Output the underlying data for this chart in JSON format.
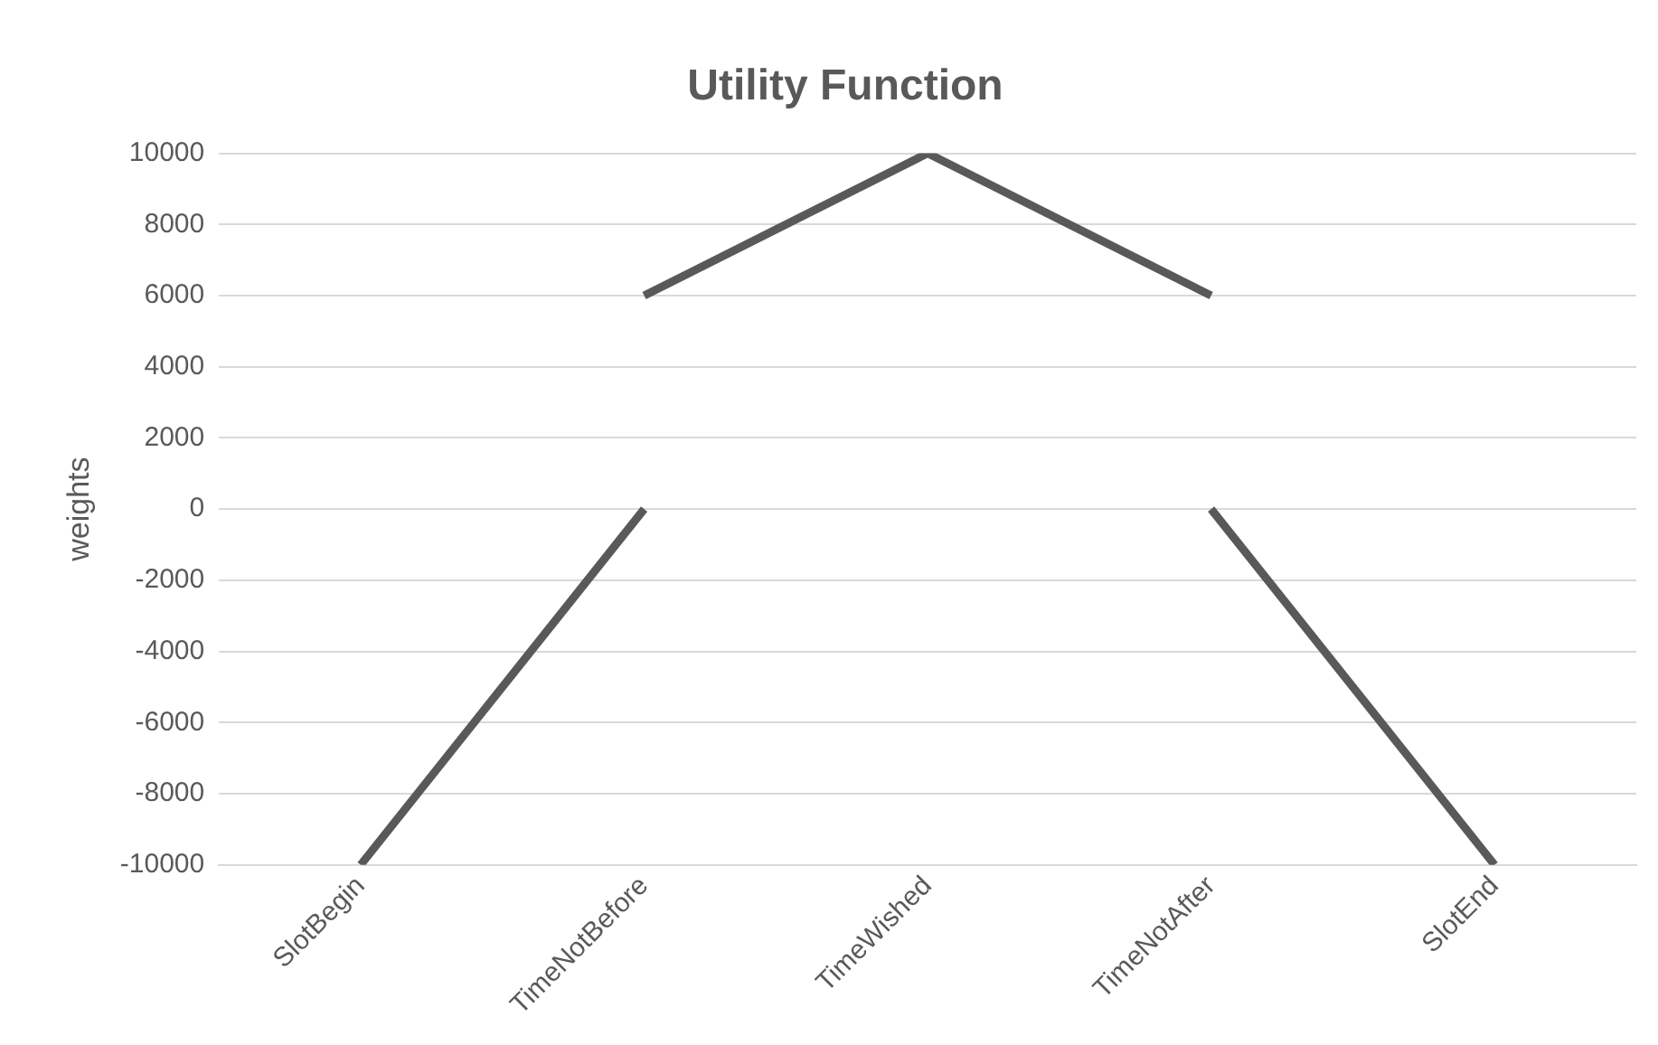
{
  "chart_data": {
    "type": "line",
    "title": "Utility Function",
    "ylabel": "weights",
    "categories": [
      "SlotBegin",
      "TimeNotBefore",
      "TimeWished",
      "TimeNotAfter",
      "SlotEnd"
    ],
    "series": [
      {
        "color": "#595959",
        "values": [
          -10000,
          0,
          null,
          null,
          null
        ]
      },
      {
        "color": "#595959",
        "values": [
          null,
          6000,
          10000,
          6000,
          null
        ]
      },
      {
        "color": "#595959",
        "values": [
          null,
          null,
          null,
          0,
          -10000
        ]
      }
    ],
    "ylim": [
      -10000,
      10000
    ],
    "yticks": [
      -10000,
      -8000,
      -6000,
      -4000,
      -2000,
      0,
      2000,
      4000,
      6000,
      8000,
      10000
    ],
    "grid": "y",
    "legend": false,
    "marker": "none"
  }
}
